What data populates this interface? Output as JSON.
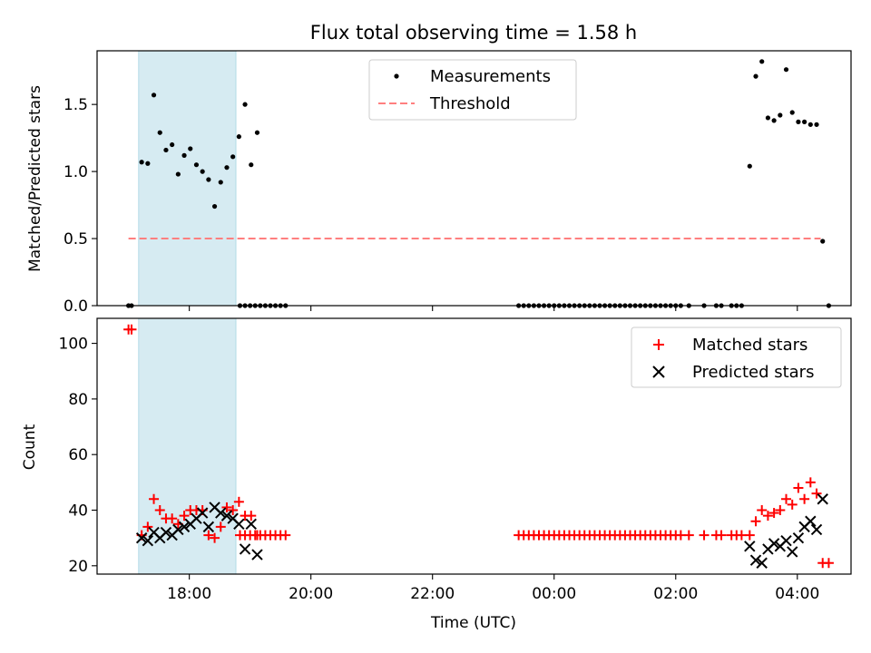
{
  "figure": {
    "title": "Flux total observing time = 1.58 h",
    "xlabel": "Time (UTC)"
  },
  "chart_data": [
    {
      "type": "scatter",
      "panel": "top",
      "ylabel": "Matched/Predicted stars",
      "xlim": [
        "16:29",
        "04:53"
      ],
      "ylim": [
        0,
        1.9
      ],
      "x_ticks": [
        "18:00",
        "20:00",
        "22:00",
        "00:00",
        "02:00",
        "04:00"
      ],
      "y_ticks": [
        "0.0",
        "0.5",
        "1.0",
        "1.5"
      ],
      "legend": {
        "placement": "upper-center",
        "entries": [
          {
            "label": "Measurements",
            "marker": "dot",
            "color": "#000000"
          },
          {
            "label": "Threshold",
            "marker": "dashed-line",
            "color": "#ff7f7f"
          }
        ]
      },
      "highlight_span": {
        "x": [
          "17:10",
          "18:46"
        ],
        "color": "#add8e6"
      },
      "threshold": {
        "y": 0.5,
        "x": [
          "17:00",
          "04:23"
        ],
        "color": "#ff7f7f"
      },
      "series": [
        {
          "name": "Measurements",
          "color": "#000000",
          "points": [
            [
              "17:00",
              0
            ],
            [
              "17:03",
              0
            ],
            [
              "17:13",
              1.07
            ],
            [
              "17:19",
              1.06
            ],
            [
              "17:25",
              1.57
            ],
            [
              "17:31",
              1.29
            ],
            [
              "17:37",
              1.16
            ],
            [
              "17:43",
              1.2
            ],
            [
              "17:49",
              0.98
            ],
            [
              "17:55",
              1.12
            ],
            [
              "18:01",
              1.17
            ],
            [
              "18:07",
              1.05
            ],
            [
              "18:13",
              1.0
            ],
            [
              "18:19",
              0.94
            ],
            [
              "18:25",
              0.74
            ],
            [
              "18:31",
              0.92
            ],
            [
              "18:37",
              1.03
            ],
            [
              "18:43",
              1.11
            ],
            [
              "18:49",
              1.26
            ],
            [
              "18:55",
              1.5
            ],
            [
              "19:01",
              1.05
            ],
            [
              "19:07",
              1.29
            ],
            [
              "18:50",
              0
            ],
            [
              "18:55",
              0
            ],
            [
              "19:00",
              0
            ],
            [
              "19:05",
              0
            ],
            [
              "19:10",
              0
            ],
            [
              "19:15",
              0
            ],
            [
              "19:20",
              0
            ],
            [
              "19:25",
              0
            ],
            [
              "19:30",
              0
            ],
            [
              "19:35",
              0
            ],
            [
              "23:25",
              0
            ],
            [
              "23:30",
              0
            ],
            [
              "23:35",
              0
            ],
            [
              "23:40",
              0
            ],
            [
              "23:45",
              0
            ],
            [
              "23:50",
              0
            ],
            [
              "23:55",
              0
            ],
            [
              "00:00",
              0
            ],
            [
              "00:05",
              0
            ],
            [
              "00:10",
              0
            ],
            [
              "00:15",
              0
            ],
            [
              "00:20",
              0
            ],
            [
              "00:25",
              0
            ],
            [
              "00:30",
              0
            ],
            [
              "00:35",
              0
            ],
            [
              "00:40",
              0
            ],
            [
              "00:45",
              0
            ],
            [
              "00:50",
              0
            ],
            [
              "00:55",
              0
            ],
            [
              "01:00",
              0
            ],
            [
              "01:05",
              0
            ],
            [
              "01:10",
              0
            ],
            [
              "01:15",
              0
            ],
            [
              "01:20",
              0
            ],
            [
              "01:25",
              0
            ],
            [
              "01:30",
              0
            ],
            [
              "01:35",
              0
            ],
            [
              "01:40",
              0
            ],
            [
              "01:45",
              0
            ],
            [
              "01:50",
              0
            ],
            [
              "01:55",
              0
            ],
            [
              "02:00",
              0
            ],
            [
              "02:05",
              0
            ],
            [
              "02:13",
              0
            ],
            [
              "02:28",
              0
            ],
            [
              "02:40",
              0
            ],
            [
              "02:45",
              0
            ],
            [
              "02:55",
              0
            ],
            [
              "03:00",
              0
            ],
            [
              "03:05",
              0
            ],
            [
              "03:13",
              1.04
            ],
            [
              "03:19",
              1.71
            ],
            [
              "03:25",
              1.82
            ],
            [
              "03:31",
              1.4
            ],
            [
              "03:37",
              1.38
            ],
            [
              "03:43",
              1.42
            ],
            [
              "03:49",
              1.76
            ],
            [
              "03:55",
              1.44
            ],
            [
              "04:01",
              1.37
            ],
            [
              "04:07",
              1.37
            ],
            [
              "04:13",
              1.35
            ],
            [
              "04:19",
              1.35
            ],
            [
              "04:25",
              0.48
            ],
            [
              "04:31",
              0
            ]
          ]
        }
      ]
    },
    {
      "type": "scatter",
      "panel": "bottom",
      "ylabel": "Count",
      "xlim": [
        "16:29",
        "04:53"
      ],
      "ylim": [
        17,
        109
      ],
      "x_ticks": [
        "18:00",
        "20:00",
        "22:00",
        "00:00",
        "02:00",
        "04:00"
      ],
      "y_ticks": [
        "20",
        "40",
        "60",
        "80",
        "100"
      ],
      "legend": {
        "placement": "upper-right",
        "entries": [
          {
            "label": "Matched stars",
            "marker": "plus",
            "color": "#ff0000"
          },
          {
            "label": "Predicted stars",
            "marker": "x",
            "color": "#000000"
          }
        ]
      },
      "highlight_span": {
        "x": [
          "17:10",
          "18:46"
        ],
        "color": "#add8e6"
      },
      "series": [
        {
          "name": "Matched stars",
          "marker": "plus",
          "color": "#ff0000",
          "points": [
            [
              "17:00",
              105
            ],
            [
              "17:03",
              105
            ],
            [
              "17:13",
              31
            ],
            [
              "17:19",
              34
            ],
            [
              "17:25",
              44
            ],
            [
              "17:31",
              40
            ],
            [
              "17:37",
              37
            ],
            [
              "17:43",
              37
            ],
            [
              "17:49",
              35
            ],
            [
              "17:55",
              38
            ],
            [
              "18:01",
              40
            ],
            [
              "18:07",
              40
            ],
            [
              "18:13",
              40
            ],
            [
              "18:19",
              31
            ],
            [
              "18:25",
              30
            ],
            [
              "18:31",
              34
            ],
            [
              "18:37",
              41
            ],
            [
              "18:43",
              40
            ],
            [
              "18:49",
              43
            ],
            [
              "18:55",
              38
            ],
            [
              "19:01",
              38
            ],
            [
              "19:07",
              31
            ],
            [
              "18:50",
              31
            ],
            [
              "18:55",
              31
            ],
            [
              "19:00",
              31
            ],
            [
              "19:05",
              31
            ],
            [
              "19:10",
              31
            ],
            [
              "19:15",
              31
            ],
            [
              "19:20",
              31
            ],
            [
              "19:25",
              31
            ],
            [
              "19:30",
              31
            ],
            [
              "19:35",
              31
            ],
            [
              "23:25",
              31
            ],
            [
              "23:30",
              31
            ],
            [
              "23:35",
              31
            ],
            [
              "23:40",
              31
            ],
            [
              "23:45",
              31
            ],
            [
              "23:50",
              31
            ],
            [
              "23:55",
              31
            ],
            [
              "00:00",
              31
            ],
            [
              "00:05",
              31
            ],
            [
              "00:10",
              31
            ],
            [
              "00:15",
              31
            ],
            [
              "00:20",
              31
            ],
            [
              "00:25",
              31
            ],
            [
              "00:30",
              31
            ],
            [
              "00:35",
              31
            ],
            [
              "00:40",
              31
            ],
            [
              "00:45",
              31
            ],
            [
              "00:50",
              31
            ],
            [
              "00:55",
              31
            ],
            [
              "01:00",
              31
            ],
            [
              "01:05",
              31
            ],
            [
              "01:10",
              31
            ],
            [
              "01:15",
              31
            ],
            [
              "01:20",
              31
            ],
            [
              "01:25",
              31
            ],
            [
              "01:30",
              31
            ],
            [
              "01:35",
              31
            ],
            [
              "01:40",
              31
            ],
            [
              "01:45",
              31
            ],
            [
              "01:50",
              31
            ],
            [
              "01:55",
              31
            ],
            [
              "02:00",
              31
            ],
            [
              "02:05",
              31
            ],
            [
              "02:13",
              31
            ],
            [
              "02:28",
              31
            ],
            [
              "02:40",
              31
            ],
            [
              "02:45",
              31
            ],
            [
              "02:55",
              31
            ],
            [
              "03:00",
              31
            ],
            [
              "03:05",
              31
            ],
            [
              "03:13",
              31
            ],
            [
              "03:19",
              36
            ],
            [
              "03:25",
              40
            ],
            [
              "03:31",
              38
            ],
            [
              "03:37",
              39
            ],
            [
              "03:43",
              40
            ],
            [
              "03:49",
              44
            ],
            [
              "03:55",
              42
            ],
            [
              "04:01",
              48
            ],
            [
              "04:07",
              44
            ],
            [
              "04:13",
              50
            ],
            [
              "04:19",
              46
            ],
            [
              "04:25",
              21
            ],
            [
              "04:31",
              21
            ]
          ]
        },
        {
          "name": "Predicted stars",
          "marker": "x",
          "color": "#000000",
          "points": [
            [
              "17:13",
              30
            ],
            [
              "17:19",
              29
            ],
            [
              "17:25",
              32
            ],
            [
              "17:31",
              30
            ],
            [
              "17:37",
              32
            ],
            [
              "17:43",
              31
            ],
            [
              "17:49",
              33
            ],
            [
              "17:55",
              34
            ],
            [
              "18:01",
              35
            ],
            [
              "18:07",
              37
            ],
            [
              "18:13",
              39
            ],
            [
              "18:19",
              34
            ],
            [
              "18:25",
              41
            ],
            [
              "18:31",
              39
            ],
            [
              "18:37",
              38
            ],
            [
              "18:43",
              37
            ],
            [
              "18:49",
              35
            ],
            [
              "18:55",
              26
            ],
            [
              "19:01",
              35
            ],
            [
              "19:07",
              24
            ],
            [
              "03:13",
              27
            ],
            [
              "03:19",
              22
            ],
            [
              "03:25",
              21
            ],
            [
              "03:31",
              26
            ],
            [
              "03:37",
              28
            ],
            [
              "03:43",
              27
            ],
            [
              "03:49",
              29
            ],
            [
              "03:55",
              25
            ],
            [
              "04:01",
              30
            ],
            [
              "04:07",
              34
            ],
            [
              "04:13",
              36
            ],
            [
              "04:19",
              33
            ],
            [
              "04:25",
              44
            ]
          ]
        }
      ]
    }
  ]
}
